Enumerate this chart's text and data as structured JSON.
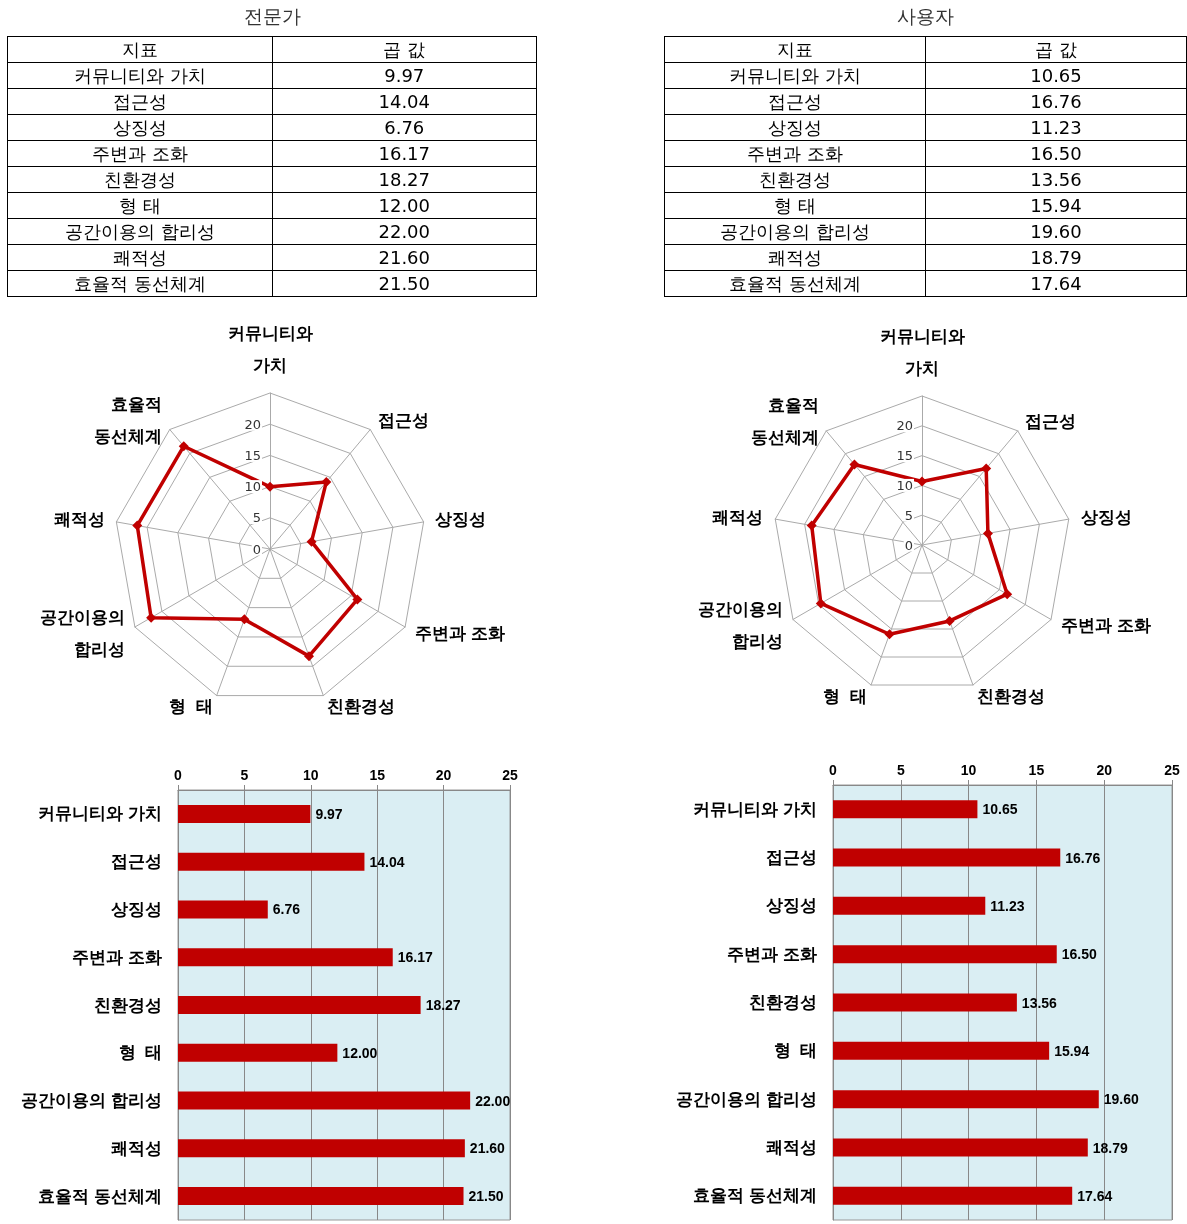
{
  "chart_data": [
    {
      "type": "other",
      "title": "전문가",
      "annotations": [
        "지표",
        "곱 값"
      ],
      "categories": [
        "커뮤니티와 가치",
        "접근성",
        "상징성",
        "주변과 조화",
        "친환경성",
        "형  태",
        "공간이용의 합리성",
        "쾌적성",
        "효율적 동선체계"
      ],
      "value_labels": [
        "9.97",
        "14.04",
        "6.76",
        "16.17",
        "18.27",
        "12.00",
        "22.00",
        "21.60",
        "21.50"
      ]
    },
    {
      "type": "other",
      "title": "사용자",
      "annotations": [
        "지표",
        "곱 값"
      ],
      "categories": [
        "커뮤니티와 가치",
        "접근성",
        "상징성",
        "주변과 조화",
        "친환경성",
        "형  태",
        "공간이용의 합리성",
        "쾌적성",
        "효율적 동선체계"
      ],
      "value_labels": [
        "10.65",
        "16.76",
        "11.23",
        "16.50",
        "13.56",
        "15.94",
        "19.60",
        "18.79",
        "17.64"
      ]
    },
    {
      "type": "radar",
      "categories": [
        "커뮤니티와 가치",
        "접근성",
        "상징성",
        "주변과 조화",
        "친환경성",
        "형  태",
        "공간이용의 합리성",
        "쾌적성",
        "효율적 동선체계"
      ],
      "values": [
        9.97,
        14.04,
        6.76,
        16.17,
        18.27,
        12.0,
        22.0,
        21.6,
        21.5
      ],
      "color": "#c00000",
      "ylim": [
        0,
        25
      ],
      "yticks": [
        0,
        5,
        10,
        15,
        20
      ],
      "grid": true,
      "marker": "diamond",
      "line_style": "solid"
    },
    {
      "type": "radar",
      "categories": [
        "커뮤니티와 가치",
        "접근성",
        "상징성",
        "주변과 조화",
        "친환경성",
        "형  태",
        "공간이용의 합리성",
        "쾌적성",
        "효율적 동선체계"
      ],
      "values": [
        10.65,
        16.76,
        11.23,
        16.5,
        13.56,
        15.94,
        19.6,
        18.79,
        17.64
      ],
      "color": "#c00000",
      "ylim": [
        0,
        25
      ],
      "yticks": [
        0,
        5,
        10,
        15,
        20
      ],
      "grid": true,
      "marker": "diamond",
      "line_style": "solid"
    },
    {
      "type": "bar",
      "orientation": "horizontal",
      "categories": [
        "커뮤니티와 가치",
        "접근성",
        "상징성",
        "주변과 조화",
        "친환경성",
        "형  태",
        "공간이용의 합리성",
        "쾌적성",
        "효율적 동선체계"
      ],
      "values": [
        9.97,
        14.04,
        6.76,
        16.17,
        18.27,
        12.0,
        22.0,
        21.6,
        21.5
      ],
      "value_labels": [
        "9.97",
        "14.04",
        "6.76",
        "16.17",
        "18.27",
        "12.00",
        "22.00",
        "21.60",
        "21.50"
      ],
      "color": "#c00000",
      "xlim": [
        0,
        25
      ],
      "xticks": [
        0,
        5,
        10,
        15,
        20,
        25
      ],
      "grid": "x"
    },
    {
      "type": "bar",
      "orientation": "horizontal",
      "categories": [
        "커뮤니티와 가치",
        "접근성",
        "상징성",
        "주변과 조화",
        "친환경성",
        "형  태",
        "공간이용의 합리성",
        "쾌적성",
        "효율적 동선체계"
      ],
      "values": [
        10.65,
        16.76,
        11.23,
        16.5,
        13.56,
        15.94,
        19.6,
        18.79,
        17.64
      ],
      "value_labels": [
        "10.65",
        "16.76",
        "11.23",
        "16.50",
        "13.56",
        "15.94",
        "19.60",
        "18.79",
        "17.64"
      ],
      "color": "#c00000",
      "xlim": [
        0,
        25
      ],
      "xticks": [
        0,
        5,
        10,
        15,
        20,
        25
      ],
      "grid": "x"
    }
  ]
}
